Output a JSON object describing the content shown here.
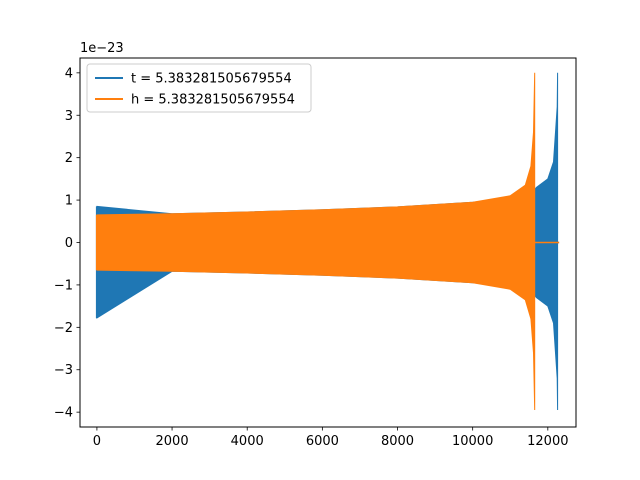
{
  "chart_data": {
    "type": "line",
    "title": "",
    "xlabel": "",
    "ylabel": "",
    "y_offset_text": "1e−23",
    "xlim": [
      -450,
      12750
    ],
    "ylim": [
      -4.35,
      4.35
    ],
    "x_ticks": [
      0,
      2000,
      4000,
      6000,
      8000,
      10000,
      12000
    ],
    "x_tick_labels": [
      "0",
      "2000",
      "4000",
      "6000",
      "8000",
      "10000",
      "12000"
    ],
    "y_ticks": [
      -4,
      -3,
      -2,
      -1,
      0,
      1,
      2,
      3,
      4
    ],
    "y_tick_labels": [
      "−4",
      "−3",
      "−2",
      "−1",
      "0",
      "1",
      "2",
      "3",
      "4"
    ],
    "grid": false,
    "legend_position": "top-left",
    "series": [
      {
        "name": "t = 5.383281505679554",
        "color": "#1f77b4",
        "envelope": {
          "x": [
            0,
            2000,
            4000,
            6000,
            8000,
            10000,
            11000,
            11500,
            11650,
            11700,
            12000,
            12150,
            12250,
            12260
          ],
          "upper": [
            0.85,
            0.68,
            0.72,
            0.77,
            0.84,
            0.95,
            1.03,
            1.12,
            1.25,
            1.3,
            1.5,
            1.9,
            3.2,
            4.0
          ],
          "lower": [
            -1.78,
            -0.68,
            -0.72,
            -0.77,
            -0.84,
            -0.95,
            -1.03,
            -1.12,
            -1.25,
            -1.3,
            -1.5,
            -1.9,
            -3.2,
            -3.95
          ]
        },
        "tail_x": [
          12260,
          12300
        ],
        "tail_y": [
          0,
          0
        ]
      },
      {
        "name": "h = 5.383281505679554",
        "color": "#ff7f0e",
        "envelope": {
          "x": [
            0,
            2000,
            4000,
            6000,
            8000,
            10000,
            11000,
            11400,
            11550,
            11620,
            11650
          ],
          "upper": [
            0.65,
            0.68,
            0.72,
            0.77,
            0.84,
            0.95,
            1.1,
            1.35,
            1.8,
            2.6,
            4.0
          ],
          "lower": [
            -0.65,
            -0.68,
            -0.72,
            -0.77,
            -0.84,
            -0.95,
            -1.1,
            -1.35,
            -1.8,
            -2.6,
            -3.95
          ]
        },
        "tail_x": [
          11650,
          12300
        ],
        "tail_y": [
          0,
          0
        ]
      }
    ]
  }
}
